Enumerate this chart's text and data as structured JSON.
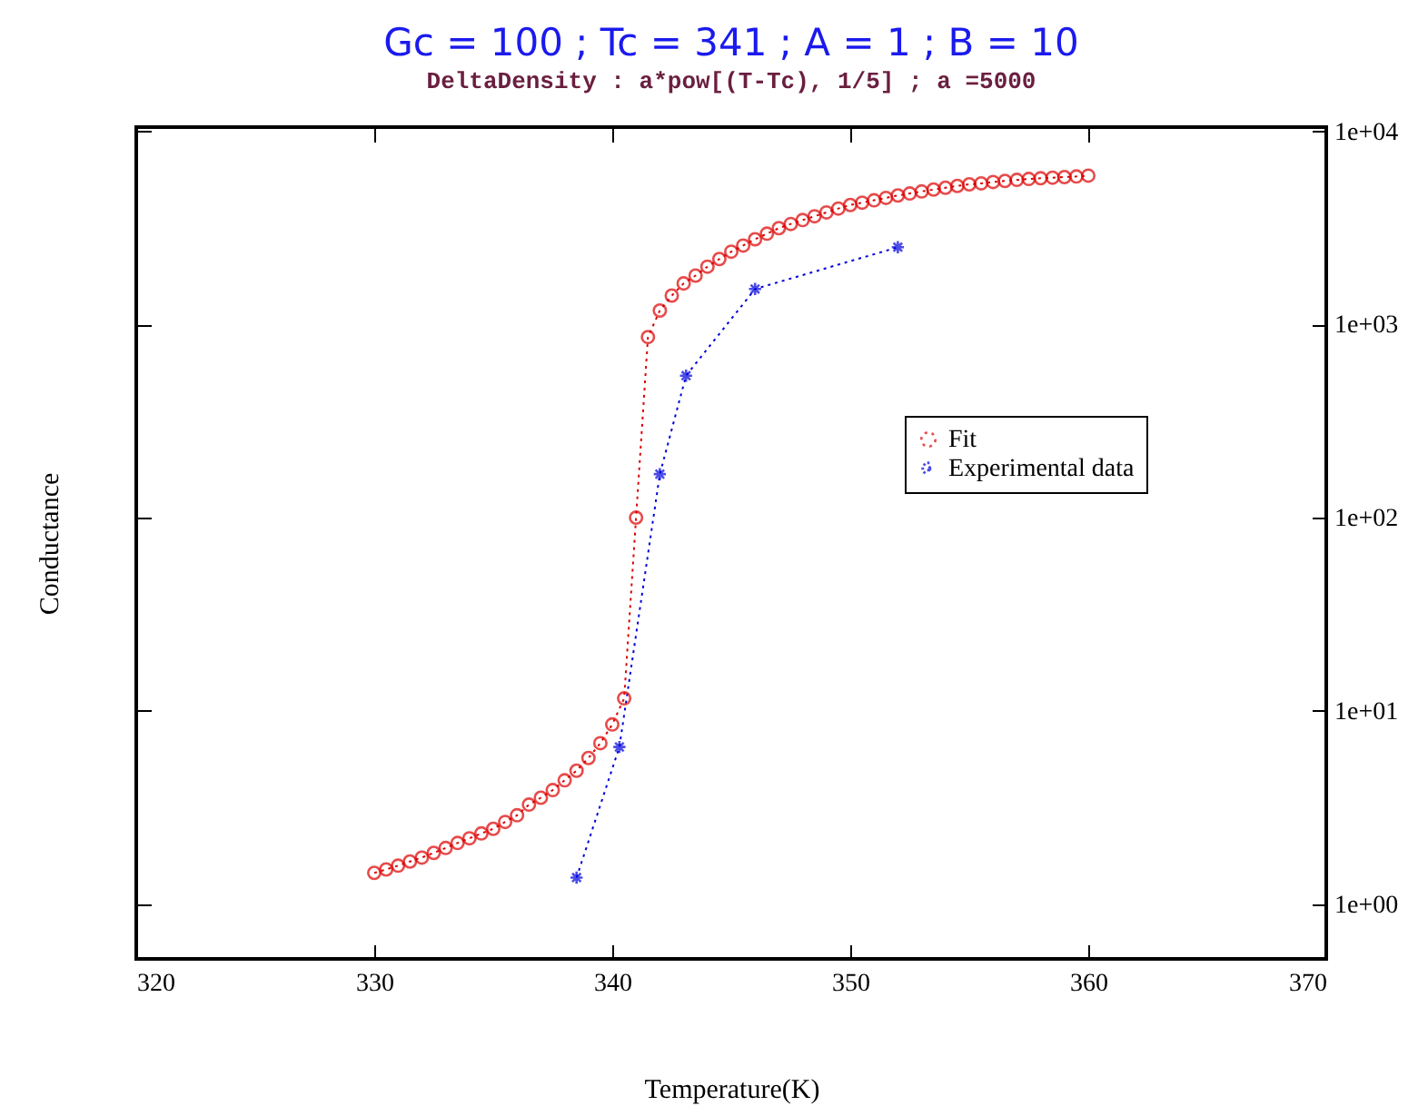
{
  "chart_data": {
    "type": "line",
    "title": "Gc = 100 ; Tc = 341 ; A = 1 ; B = 10",
    "subtitle": "DeltaDensity : a*pow[(T-Tc), 1/5] ; a =5000",
    "xlabel": "Temperature(K)",
    "ylabel": "Conductance",
    "xlim": [
      320,
      370
    ],
    "xticks": [
      320,
      330,
      340,
      350,
      360,
      370
    ],
    "ylim": [
      0.52,
      10500
    ],
    "yticks": [
      {
        "value": 1,
        "label": "1e+00"
      },
      {
        "value": 10,
        "label": "1e+01"
      },
      {
        "value": 100,
        "label": "1e+02"
      },
      {
        "value": 1000,
        "label": "1e+03"
      },
      {
        "value": 10000,
        "label": "1e+04"
      }
    ],
    "log": "y",
    "grid": false,
    "legend": "right",
    "line_style": "dotted",
    "series": [
      {
        "name": "Fit",
        "color": "#dd0000",
        "marker": "circle",
        "x": [
          330,
          330.5,
          331,
          331.5,
          332,
          332.5,
          333,
          333.5,
          334,
          334.5,
          335,
          335.5,
          336,
          336.5,
          337,
          337.5,
          338,
          338.5,
          339,
          339.5,
          340,
          340.5,
          341,
          341.5,
          342,
          342.5,
          343,
          343.5,
          344,
          344.5,
          345,
          345.5,
          346,
          346.5,
          347,
          347.5,
          348,
          348.5,
          349,
          349.5,
          350,
          350.5,
          351,
          351.5,
          352,
          352.5,
          353,
          353.5,
          354,
          354.5,
          355,
          355.5,
          356,
          356.5,
          357,
          357.5,
          358,
          358.5,
          359,
          359.5,
          360
        ],
        "values": [
          1.45,
          1.51,
          1.58,
          1.66,
          1.74,
          1.84,
          1.95,
          2.07,
          2.19,
          2.32,
          2.45,
          2.66,
          2.88,
          3.27,
          3.55,
          3.89,
          4.37,
          4.9,
          5.7,
          6.8,
          8.5,
          11.6,
          100,
          860,
          1180,
          1410,
          1630,
          1790,
          1990,
          2180,
          2380,
          2560,
          2760,
          2950,
          3150,
          3310,
          3470,
          3630,
          3800,
          3980,
          4150,
          4270,
          4390,
          4520,
          4650,
          4760,
          4880,
          4990,
          5100,
          5210,
          5310,
          5370,
          5460,
          5530,
          5600,
          5660,
          5710,
          5750,
          5790,
          5830,
          5890
        ]
      },
      {
        "name": "Experimental data",
        "color": "#0000dd",
        "marker": "cross",
        "x": [
          338.5,
          340.3,
          342,
          343.1,
          346,
          352
        ],
        "values": [
          1.37,
          6.5,
          168,
          543,
          1525,
          2510
        ]
      }
    ]
  }
}
